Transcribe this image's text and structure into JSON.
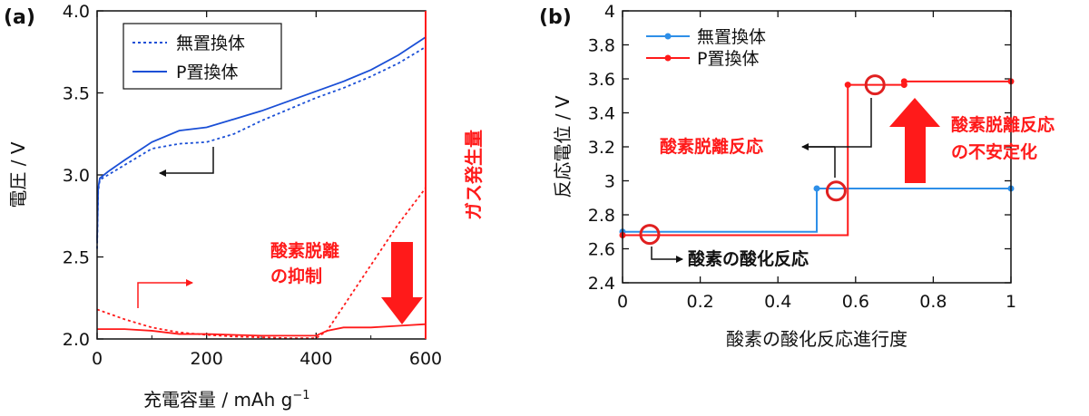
{
  "chart_data": [
    {
      "panel_label": "(a)",
      "type": "line",
      "xlabel": "充電容量 / mAh g",
      "xlabel_exp": "−1",
      "ylabel": "電圧 / V",
      "y2label": "ガス発生量",
      "xlim": [
        0,
        600
      ],
      "ylim": [
        2.0,
        4.0
      ],
      "xticks": [
        "0",
        "200",
        "400",
        "600"
      ],
      "yticks": [
        "2.0",
        "2.5",
        "3.0",
        "3.5",
        "4.0"
      ],
      "legend": {
        "position": "top-center",
        "entries": [
          "無置換体",
          "P置換体"
        ]
      },
      "series": [
        {
          "name": "無置換体",
          "axis": "voltage",
          "style": "dotted",
          "color": "#1a4fd6",
          "x": [
            0,
            2,
            5,
            20,
            50,
            100,
            150,
            200,
            250,
            300,
            350,
            400,
            450,
            500,
            550,
            600
          ],
          "y": [
            2.55,
            2.9,
            2.97,
            3.0,
            3.06,
            3.16,
            3.19,
            3.2,
            3.25,
            3.33,
            3.4,
            3.47,
            3.53,
            3.6,
            3.68,
            3.78
          ]
        },
        {
          "name": "P置換体",
          "axis": "voltage",
          "style": "solid",
          "color": "#1a4fd6",
          "x": [
            0,
            2,
            5,
            20,
            50,
            100,
            150,
            200,
            250,
            300,
            350,
            400,
            450,
            500,
            550,
            600
          ],
          "y": [
            2.6,
            2.92,
            2.98,
            3.02,
            3.09,
            3.2,
            3.27,
            3.29,
            3.34,
            3.39,
            3.45,
            3.51,
            3.57,
            3.64,
            3.73,
            3.84
          ]
        },
        {
          "name": "無置換体",
          "axis": "gas",
          "style": "dotted",
          "color": "#ff1a1a",
          "x": [
            0,
            50,
            100,
            150,
            200,
            250,
            300,
            350,
            400,
            420,
            450,
            500,
            550,
            600
          ],
          "y": [
            2.18,
            2.12,
            2.07,
            2.04,
            2.025,
            2.015,
            2.01,
            2.005,
            2.005,
            2.05,
            2.2,
            2.45,
            2.7,
            2.92
          ]
        },
        {
          "name": "P置換体",
          "axis": "gas",
          "style": "solid",
          "color": "#ff1a1a",
          "x": [
            0,
            50,
            100,
            150,
            200,
            250,
            300,
            350,
            400,
            420,
            450,
            500,
            550,
            600
          ],
          "y": [
            2.06,
            2.06,
            2.05,
            2.03,
            2.03,
            2.025,
            2.02,
            2.02,
            2.02,
            2.05,
            2.07,
            2.07,
            2.08,
            2.09
          ]
        }
      ],
      "annotations": {
        "voltage_axis_arrow": "←",
        "gas_axis_arrow": "→",
        "suppression_line1": "酸素脱離",
        "suppression_line2": "の抑制"
      }
    },
    {
      "panel_label": "(b)",
      "type": "line",
      "xlabel": "酸素の酸化反応進行度",
      "ylabel": "反応電位 / V",
      "xlim": [
        0,
        1
      ],
      "ylim": [
        2.4,
        4.0
      ],
      "xticks": [
        "0",
        "0.2",
        "0.4",
        "0.6",
        "0.8",
        "1"
      ],
      "yticks": [
        "2.4",
        "2.6",
        "2.8",
        "3",
        "3.2",
        "3.4",
        "3.6",
        "3.8",
        "4"
      ],
      "legend": {
        "position": "top-left",
        "entries": [
          "無置換体",
          "P置換体"
        ]
      },
      "series": [
        {
          "name": "無置換体",
          "color": "#2e8fe8",
          "x": [
            0,
            0.5,
            0.5,
            1.0
          ],
          "y": [
            2.7,
            2.7,
            2.955,
            2.955
          ]
        },
        {
          "name": "P置換体",
          "color": "#ff1a1a",
          "x": [
            0,
            0.58,
            0.58,
            0.725,
            0.725,
            1.0
          ],
          "y": [
            2.68,
            2.68,
            3.565,
            3.565,
            3.585,
            3.585
          ]
        }
      ],
      "markers": {
        "無置換体": {
          "x": [
            0,
            0.5,
            1.0
          ],
          "y": [
            2.7,
            2.955,
            2.955
          ]
        },
        "P置換体": {
          "x": [
            0,
            0.58,
            0.725,
            0.725,
            1.0
          ],
          "y": [
            2.68,
            3.565,
            3.565,
            3.585,
            3.585
          ]
        }
      },
      "circles": [
        {
          "x": 0.07,
          "y": 2.685
        },
        {
          "x": 0.55,
          "y": 2.94
        },
        {
          "x": 0.65,
          "y": 3.565
        }
      ],
      "annotations": {
        "oxygen_oxidation": "酸素の酸化反応",
        "oxygen_release": "酸素脱離反応",
        "instability_line1": "酸素脱離反応",
        "instability_line2": "の不安定化"
      }
    }
  ]
}
